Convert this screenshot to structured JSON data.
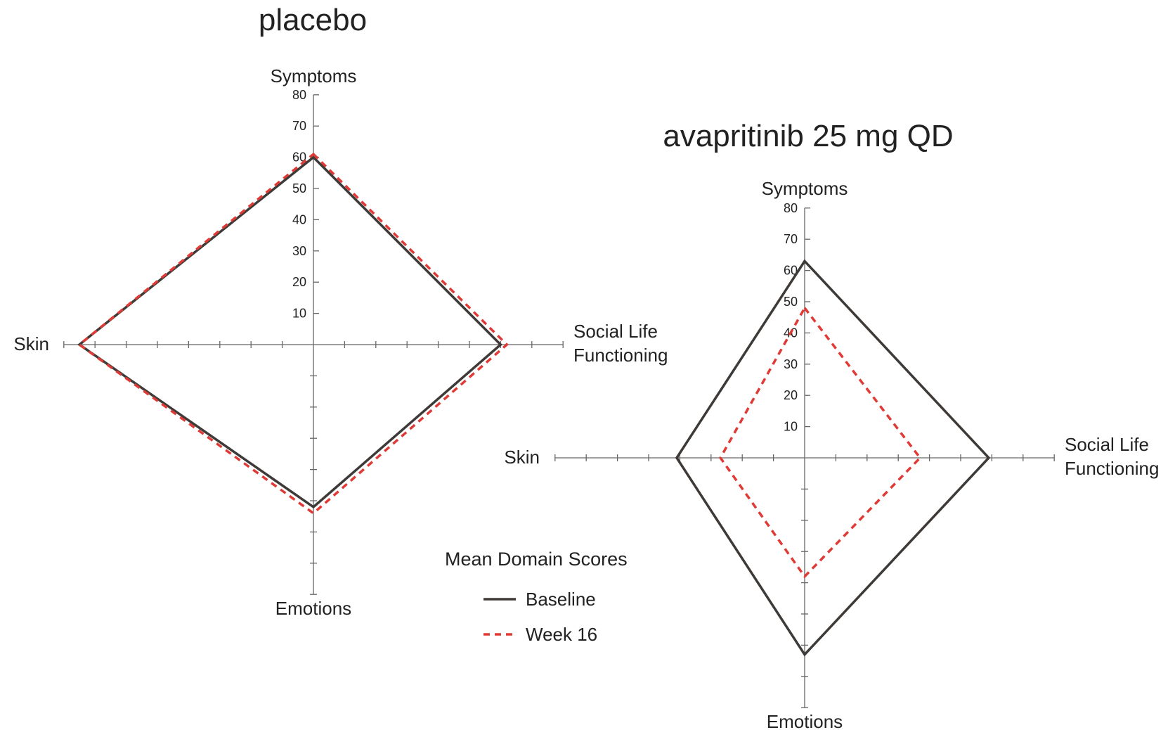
{
  "chart_data": [
    {
      "type": "radar",
      "title": "placebo",
      "axes": [
        "Symptoms",
        "Social Life Functioning",
        "Emotions",
        "Skin"
      ],
      "r_ticks": [
        10,
        20,
        30,
        40,
        50,
        60,
        70,
        80
      ],
      "rlim": [
        0,
        80
      ],
      "series": [
        {
          "name": "Baseline",
          "values": [
            60,
            60,
            52,
            75
          ]
        },
        {
          "name": "Week 16",
          "values": [
            61,
            62,
            54,
            75
          ]
        }
      ]
    },
    {
      "type": "radar",
      "title": "avapritinib 25 mg QD",
      "axes": [
        "Symptoms",
        "Social Life Functioning",
        "Emotions",
        "Skin"
      ],
      "r_ticks": [
        10,
        20,
        30,
        40,
        50,
        60,
        70,
        80
      ],
      "rlim": [
        0,
        80
      ],
      "series": [
        {
          "name": "Baseline",
          "values": [
            63,
            59,
            63,
            41
          ]
        },
        {
          "name": "Week 16",
          "values": [
            48,
            37,
            38,
            27
          ]
        }
      ]
    }
  ],
  "legend": {
    "title": "Mean Domain Scores",
    "items": [
      "Baseline",
      "Week 16"
    ]
  },
  "colors": {
    "baseline": "#3d3a38",
    "week16": "#e03a36",
    "axis": "#666666"
  }
}
